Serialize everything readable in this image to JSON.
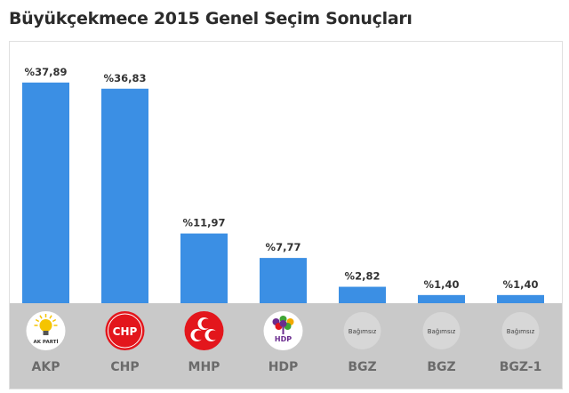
{
  "title": "Büyükçekmece 2015 Genel Seçim Sonuçları",
  "colors": {
    "bar": "#3b8fe4",
    "band": "#c9c9c9",
    "logo_bg": "#d7d7d7"
  },
  "chart_data": {
    "type": "bar",
    "title": "Büyükçekmece 2015 Genel Seçim Sonuçları",
    "categories": [
      "AKP",
      "CHP",
      "MHP",
      "HDP",
      "BGZ",
      "BGZ",
      "BGZ-1"
    ],
    "values": [
      37.89,
      36.83,
      11.97,
      7.77,
      2.82,
      1.4,
      1.4
    ],
    "value_labels": [
      "%37,89",
      "%36,83",
      "%11,97",
      "%7,77",
      "%2,82",
      "%1,40",
      "%1,40"
    ],
    "ylim": [
      0,
      40
    ],
    "grid": false,
    "legend": "none"
  },
  "logos": [
    {
      "icon": "akp-logo-icon",
      "text": "AK PARTİ"
    },
    {
      "icon": "chp-logo-icon",
      "text": "CHP"
    },
    {
      "icon": "mhp-logo-icon",
      "text": ""
    },
    {
      "icon": "hdp-logo-icon",
      "text": "HDP"
    },
    {
      "icon": "independent-icon",
      "text": "Bağımsız"
    },
    {
      "icon": "independent-icon",
      "text": "Bağımsız"
    },
    {
      "icon": "independent-icon",
      "text": "Bağımsız"
    }
  ]
}
